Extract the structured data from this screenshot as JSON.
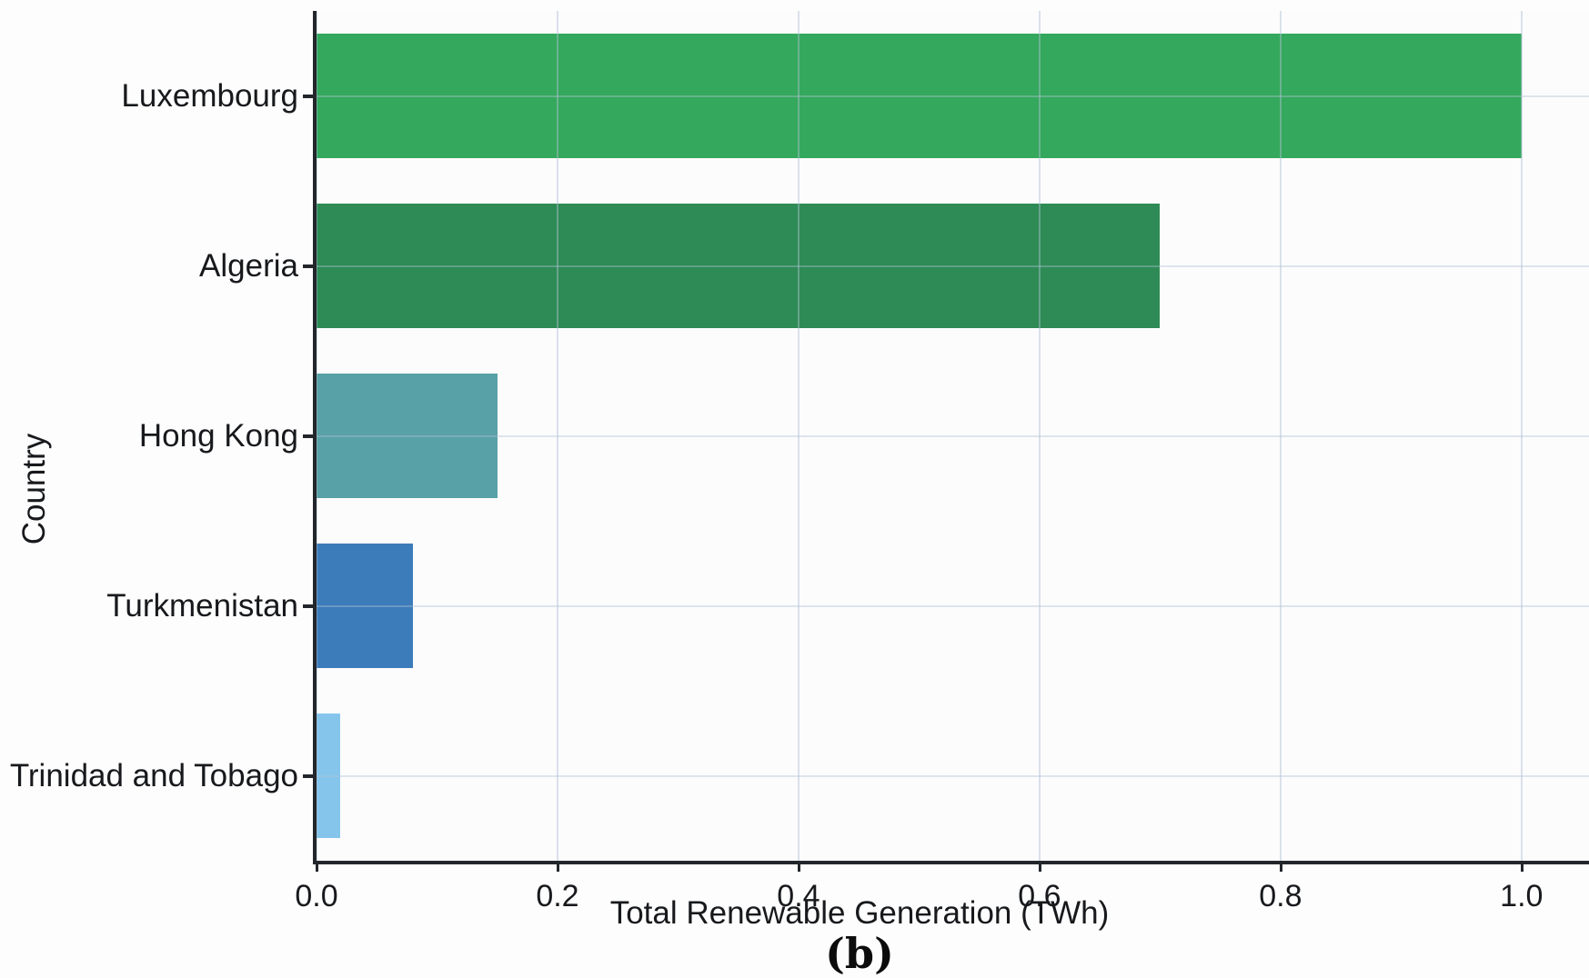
{
  "caption": "(b)",
  "colors": {
    "axis": "#23262b",
    "grid": "#d9e2eb",
    "background": "#fdfdfd",
    "text": "#17191c"
  },
  "chart_data": {
    "type": "bar",
    "orientation": "horizontal",
    "title": "",
    "xlabel": "Total Renewable Generation (TWh)",
    "ylabel": "Country",
    "categories": [
      "Luxembourg",
      "Algeria",
      "Hong Kong",
      "Turkmenistan",
      "Trinidad and Tobago"
    ],
    "values": [
      1.0,
      0.7,
      0.15,
      0.08,
      0.02
    ],
    "bar_colors": [
      "#34a85c",
      "#2e8b55",
      "#58a1a6",
      "#3d7cba",
      "#85c5ec"
    ],
    "xlim": [
      0.0,
      1.056
    ],
    "x_ticks": [
      0.0,
      0.2,
      0.4,
      0.6,
      0.8,
      1.0
    ],
    "x_tick_labels": [
      "0.0",
      "0.2",
      "0.4",
      "0.6",
      "0.8",
      "1.0"
    ],
    "grid": true,
    "legend": false
  }
}
